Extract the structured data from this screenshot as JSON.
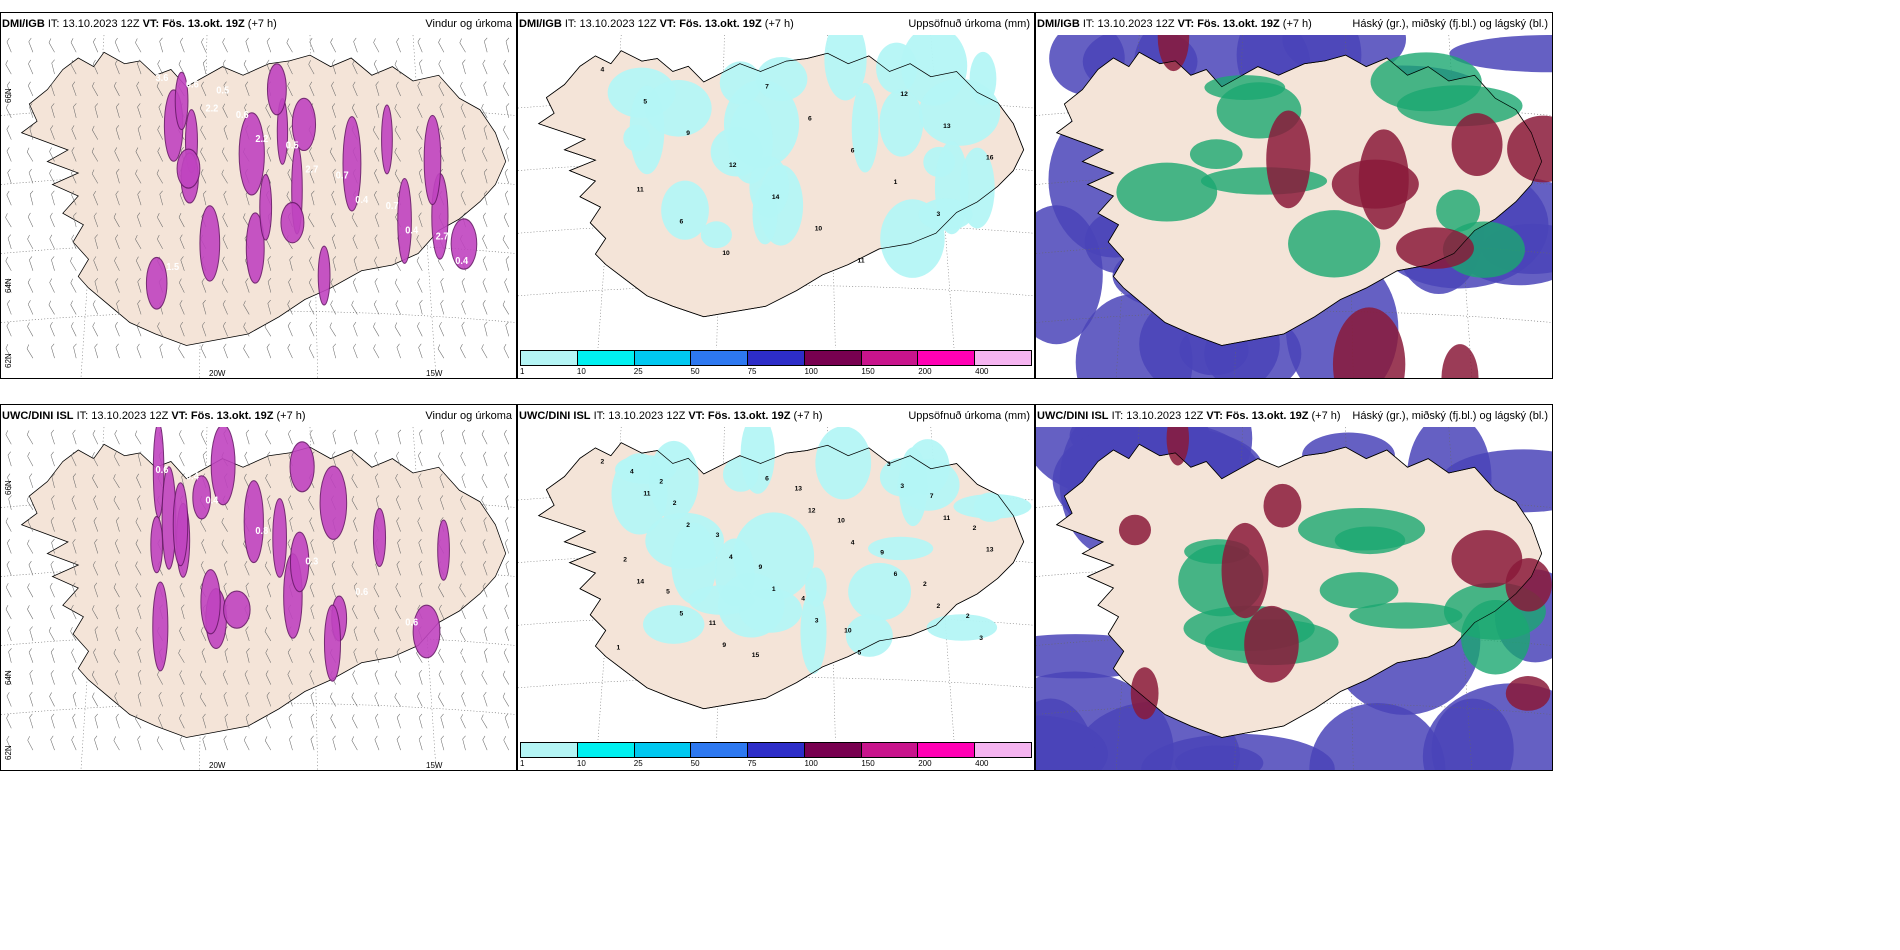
{
  "panels": [
    {
      "source": "DMI/IGB",
      "it": "IT: 13.10.2023 12Z",
      "vt": "VT: Fös. 13.okt. 19Z",
      "lead": "(+7 h)",
      "title": "Vindur og úrkoma"
    },
    {
      "source": "DMI/IGB",
      "it": "IT: 13.10.2023 12Z",
      "vt": "VT: Fös. 13.okt. 19Z",
      "lead": "(+7 h)",
      "title": "Uppsöfnuð úrkoma (mm)"
    },
    {
      "source": "DMI/IGB",
      "it": "IT: 13.10.2023 12Z",
      "vt": "VT: Fös. 13.okt. 19Z",
      "lead": "(+7 h)",
      "title": "Háský (gr.), miðský (fj.bl.) og lágský (bl.)"
    },
    {
      "source": "UWC/DINI ISL",
      "it": "IT: 13.10.2023 12Z",
      "vt": "VT: Fös. 13.okt. 19Z",
      "lead": "(+7 h)",
      "title": "Vindur og úrkoma"
    },
    {
      "source": "UWC/DINI ISL",
      "it": "IT: 13.10.2023 12Z",
      "vt": "VT: Fös. 13.okt. 19Z",
      "lead": "(+7 h)",
      "title": "Uppsöfnuð úrkoma (mm)"
    },
    {
      "source": "UWC/DINI ISL",
      "it": "IT: 13.10.2023 12Z",
      "vt": "VT: Fös. 13.okt. 19Z",
      "lead": "(+7 h)",
      "title": "Háský (gr.), miðský (fj.bl.) og lágský (bl.)"
    }
  ],
  "axes": {
    "lon1": "20W",
    "lon2": "15W",
    "lat1": "66N",
    "lat2": "64N",
    "lat3": "62N"
  },
  "wind_values_top": [
    "3.6",
    "2.2",
    "2.2",
    "2.7",
    "0.4",
    "0.4",
    "0.4",
    "0.6",
    "0.6",
    "0.5",
    "0.7",
    "0.7",
    "2.7",
    "1.5",
    "0.5"
  ],
  "wind_values_bottom": [
    "0.6",
    "0.4",
    "0.8",
    "0.3",
    "0.6",
    "0.6",
    "2.6",
    "0.4"
  ],
  "accum_values_top": [
    "4",
    "5",
    "9",
    "12",
    "14",
    "10",
    "11",
    "12",
    "13",
    "16",
    "11",
    "6",
    "10",
    "7",
    "6",
    "6",
    "1",
    "3"
  ],
  "accum_values_bottom": [
    "2",
    "11",
    "2",
    "4",
    "1",
    "3",
    "5",
    "3",
    "11",
    "13",
    "14",
    "5",
    "9",
    "6",
    "12",
    "4",
    "6",
    "2",
    "3",
    "4",
    "2",
    "3",
    "9",
    "4",
    "10",
    "3",
    "7",
    "2",
    "2",
    "5",
    "11",
    "15",
    "13",
    "10",
    "9",
    "2",
    "2",
    "1",
    "2"
  ],
  "legend": {
    "labels": [
      "1",
      "10",
      "25",
      "50",
      "75",
      "100",
      "150",
      "200",
      "400",
      ""
    ],
    "colors": [
      "#b4f5f5",
      "#00f0f0",
      "#00c8f0",
      "#2d78f0",
      "#2d2dc8",
      "#780050",
      "#c8148c",
      "#ff00b4",
      "#f5b4f0"
    ]
  },
  "colors": {
    "land": "#f4e4d8",
    "precip": "#c044c0",
    "precip_dark": "#6a1a6a",
    "cloud_high": "#4a44b8",
    "cloud_mid": "#1aa870",
    "cloud_low": "#8a1a3a",
    "accum_light": "#b4f5f5"
  }
}
